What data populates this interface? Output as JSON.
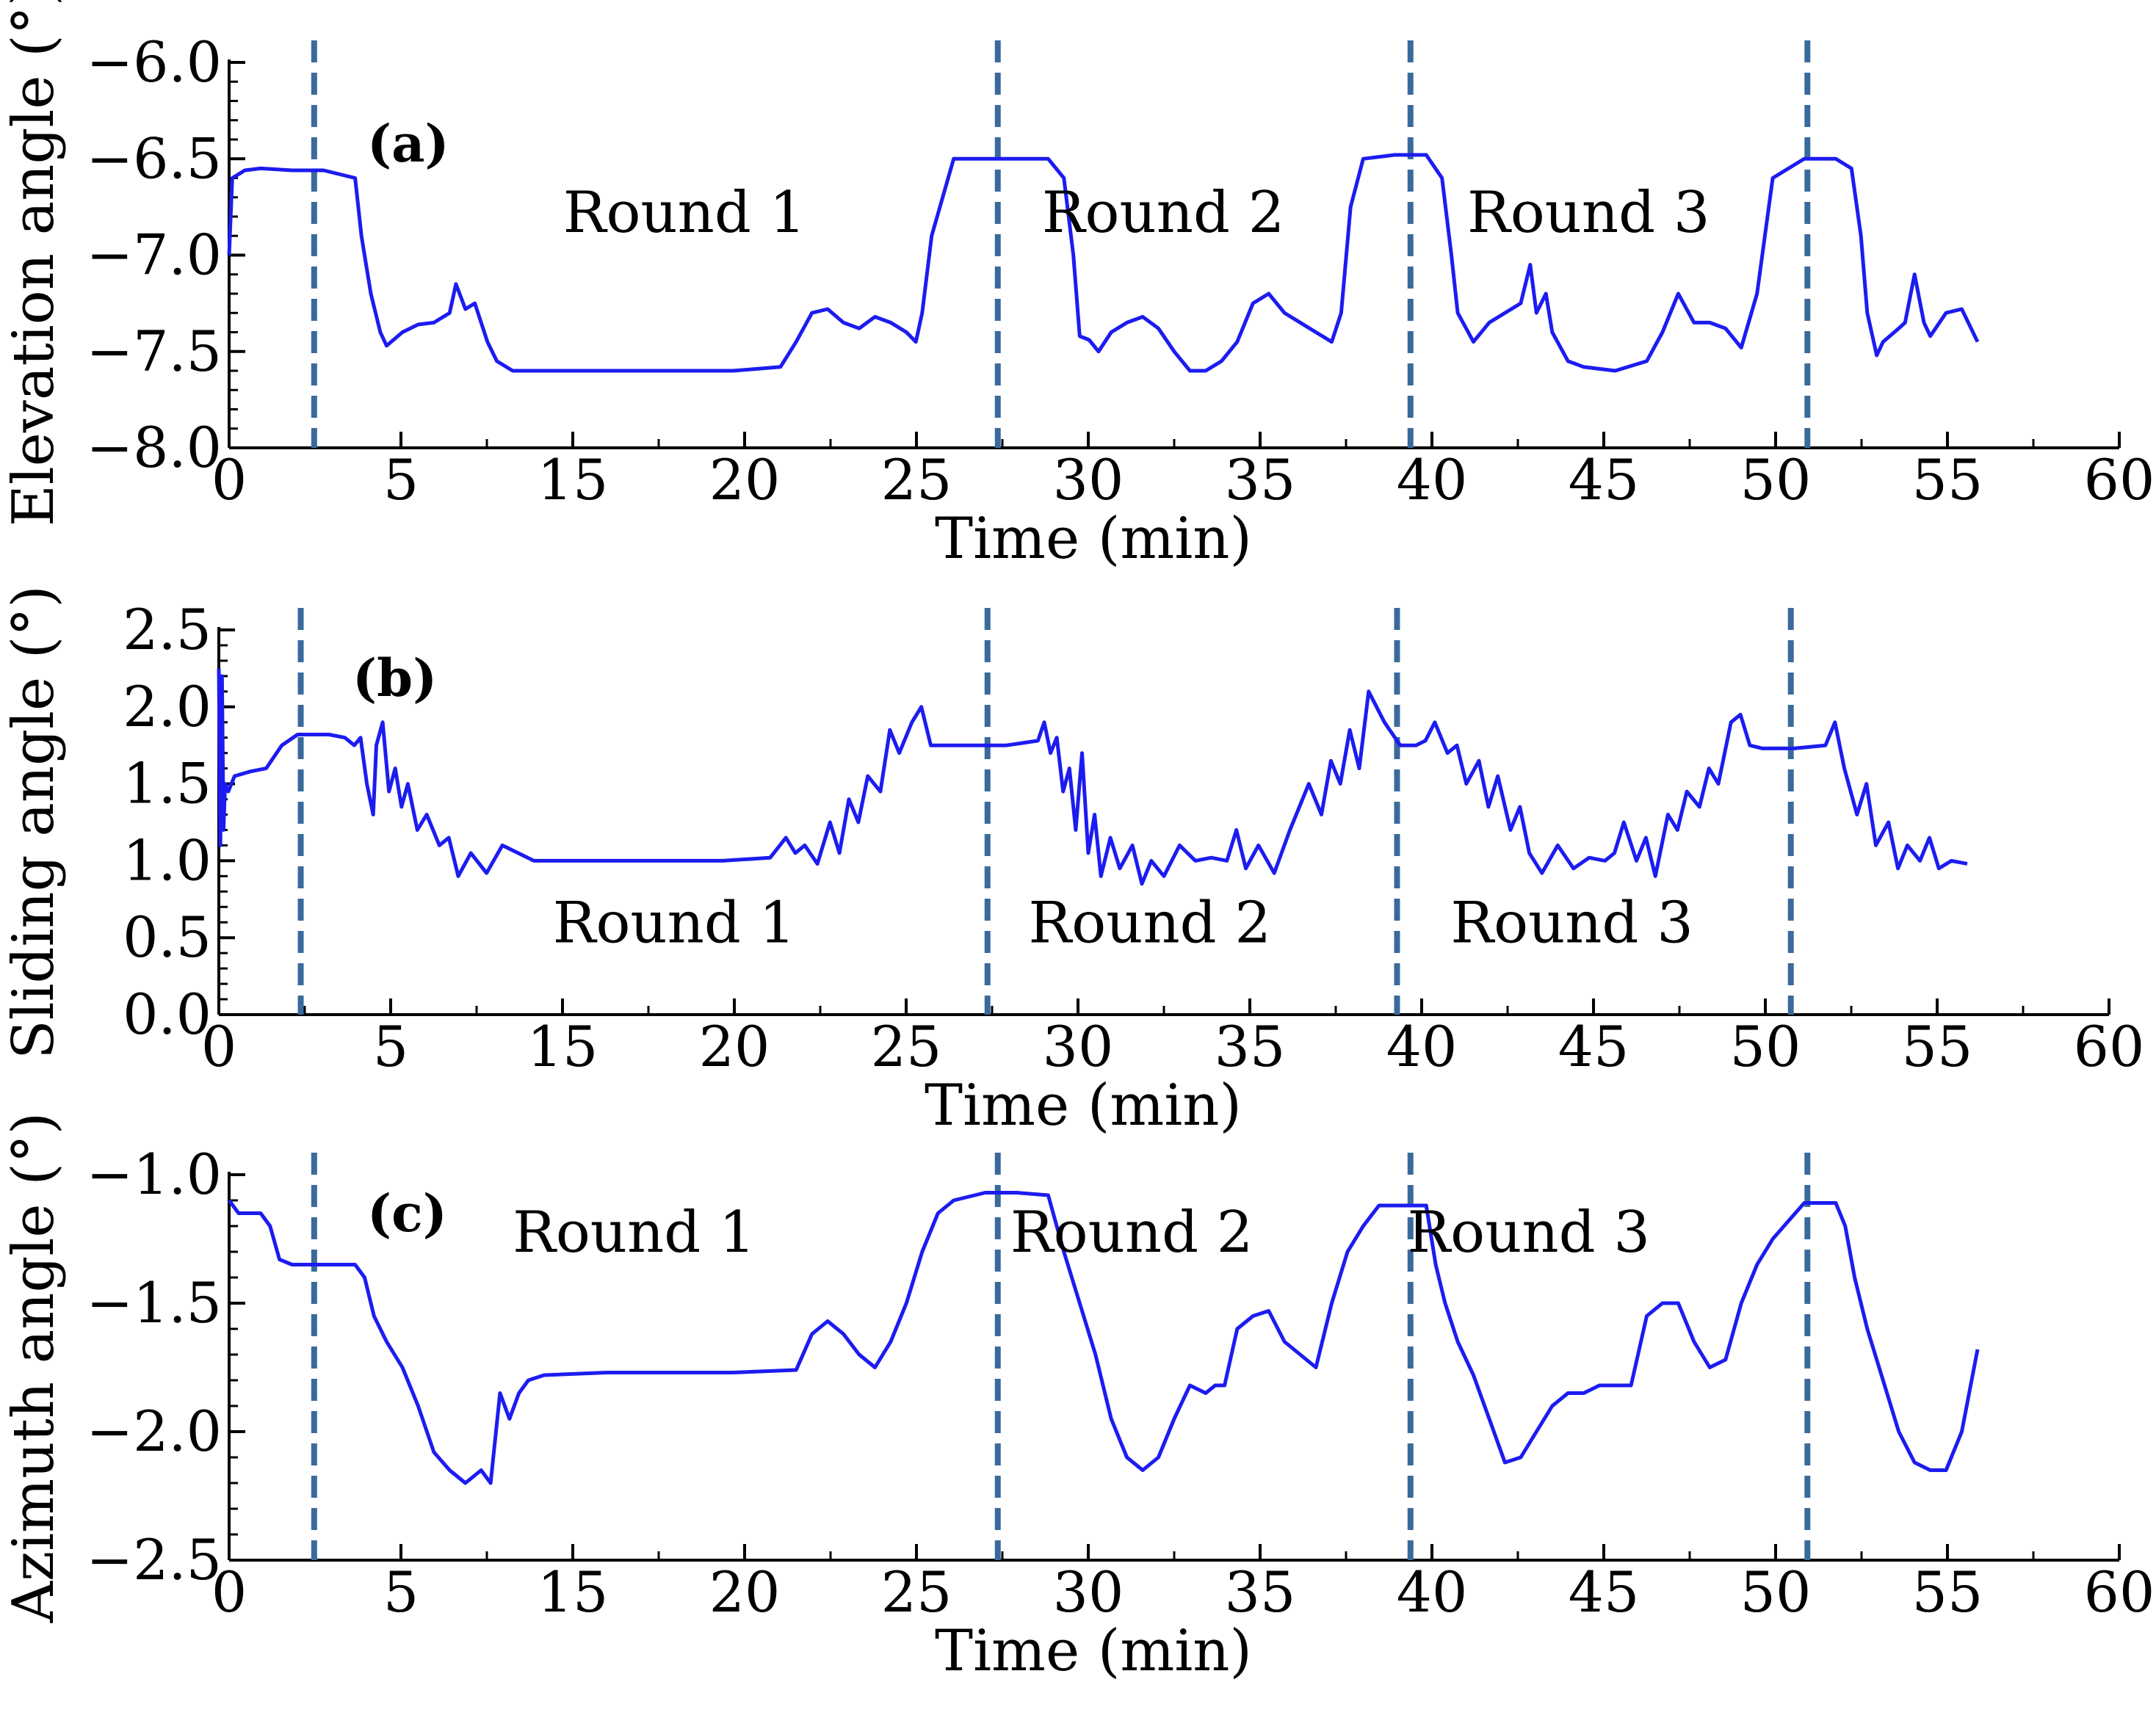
{
  "colors": {
    "series": "#1c1cf0",
    "divider": "#3a6a9c",
    "axis": "#000000"
  },
  "chart_data": [
    {
      "type": "line",
      "panel_tag": "(a)",
      "ylabel": "Elevation angle (°)",
      "xlabel": "Time (min)",
      "xlim": [
        0,
        60
      ],
      "ylim": [
        -8.0,
        -6.0
      ],
      "xtick_labels": [
        "0",
        "5",
        "15",
        "20",
        "25",
        "30",
        "35",
        "40",
        "45",
        "50",
        "55",
        "60"
      ],
      "ytick_labels": [
        "−6.0",
        "−6.5",
        "−7.0",
        "−7.5",
        "−8.0"
      ],
      "ytick_values": [
        -6.0,
        -6.5,
        -7.0,
        -7.5,
        -8.0
      ],
      "dividers_x": [
        2.7,
        24.4,
        37.5,
        50.1
      ],
      "annotations": [
        {
          "text": "Round 1",
          "x": 10.6,
          "y": -6.88
        },
        {
          "text": "Round 2",
          "x": 25.8,
          "y": -6.88
        },
        {
          "text": "Round 3",
          "x": 39.3,
          "y": -6.88
        }
      ],
      "series": [
        {
          "name": "Elevation angle",
          "x": [
            0,
            0.1,
            0.3,
            0.5,
            1,
            2,
            3,
            4,
            4.2,
            4.5,
            4.8,
            5,
            5.5,
            6,
            6.5,
            7,
            7.2,
            7.5,
            7.8,
            8,
            8.2,
            8.5,
            9,
            10,
            12,
            14,
            16,
            17.5,
            18,
            18.5,
            19,
            19.5,
            20,
            20.5,
            21,
            21.5,
            21.8,
            22,
            22.3,
            23,
            24,
            25,
            26,
            26.5,
            26.8,
            27,
            27.3,
            27.6,
            28,
            28.5,
            29,
            29.5,
            30,
            30.5,
            31,
            31.5,
            32,
            32.5,
            33,
            33.5,
            34,
            34.5,
            35,
            35.3,
            35.6,
            36,
            37,
            38,
            38.5,
            38.8,
            39,
            39.5,
            40,
            40.5,
            41,
            41.3,
            41.5,
            41.8,
            42,
            42.5,
            43,
            44,
            45,
            45.5,
            46,
            46.5,
            47,
            47.5,
            48,
            48.5,
            49,
            50,
            51,
            51.5,
            51.8,
            52,
            52.3,
            52.5,
            53,
            53.2,
            53.5,
            53.8,
            54,
            54.5,
            55,
            55.5
          ],
          "y": [
            -7.0,
            -6.6,
            -6.58,
            -6.56,
            -6.55,
            -6.56,
            -6.56,
            -6.6,
            -6.9,
            -7.2,
            -7.4,
            -7.47,
            -7.4,
            -7.36,
            -7.35,
            -7.3,
            -7.15,
            -7.28,
            -7.25,
            -7.35,
            -7.45,
            -7.55,
            -7.6,
            -7.6,
            -7.6,
            -7.6,
            -7.6,
            -7.58,
            -7.45,
            -7.3,
            -7.28,
            -7.35,
            -7.38,
            -7.32,
            -7.35,
            -7.4,
            -7.45,
            -7.3,
            -6.9,
            -6.5,
            -6.5,
            -6.5,
            -6.5,
            -6.6,
            -7.0,
            -7.42,
            -7.44,
            -7.5,
            -7.4,
            -7.35,
            -7.32,
            -7.38,
            -7.5,
            -7.6,
            -7.6,
            -7.55,
            -7.45,
            -7.25,
            -7.2,
            -7.3,
            -7.35,
            -7.4,
            -7.45,
            -7.3,
            -6.75,
            -6.5,
            -6.48,
            -6.48,
            -6.6,
            -7.0,
            -7.3,
            -7.45,
            -7.35,
            -7.3,
            -7.25,
            -7.05,
            -7.3,
            -7.2,
            -7.4,
            -7.55,
            -7.58,
            -7.6,
            -7.55,
            -7.4,
            -7.2,
            -7.35,
            -7.35,
            -7.38,
            -7.48,
            -7.2,
            -6.6,
            -6.5,
            -6.5,
            -6.55,
            -6.9,
            -7.3,
            -7.52,
            -7.45,
            -7.38,
            -7.35,
            -7.1,
            -7.35,
            -7.42,
            -7.3,
            -7.28,
            -7.45
          ]
        }
      ]
    },
    {
      "type": "line",
      "panel_tag": "(b)",
      "ylabel": "Sliding angle (°)",
      "xlabel": "Time (min)",
      "xlim": [
        0,
        60
      ],
      "ylim": [
        0.0,
        2.5
      ],
      "xtick_labels": [
        "0",
        "5",
        "15",
        "20",
        "25",
        "30",
        "35",
        "40",
        "45",
        "50",
        "55",
        "60"
      ],
      "ytick_labels": [
        "2.5",
        "2.0",
        "1.5",
        "1.0",
        "0.5",
        "0.0"
      ],
      "ytick_values": [
        2.5,
        2.0,
        1.5,
        1.0,
        0.5,
        0.0
      ],
      "dividers_x": [
        2.6,
        24.4,
        37.4,
        49.9
      ],
      "annotations": [
        {
          "text": "Round 1",
          "x": 10.6,
          "y": 0.47
        },
        {
          "text": "Round 2",
          "x": 25.7,
          "y": 0.47
        },
        {
          "text": "Round 3",
          "x": 39.1,
          "y": 0.47
        }
      ],
      "series": [
        {
          "name": "Sliding angle",
          "x": [
            0,
            0.05,
            0.1,
            0.15,
            0.2,
            0.3,
            0.5,
            1,
            1.5,
            2,
            2.5,
            3,
            3.5,
            4,
            4.3,
            4.5,
            4.7,
            4.9,
            5,
            5.2,
            5.4,
            5.6,
            5.8,
            6,
            6.3,
            6.6,
            7,
            7.3,
            7.6,
            8,
            8.5,
            9,
            10,
            12,
            14,
            16,
            17.5,
            18,
            18.3,
            18.6,
            19,
            19.4,
            19.7,
            20,
            20.3,
            20.6,
            21,
            21.3,
            21.6,
            22,
            22.3,
            22.6,
            23,
            24,
            25,
            26,
            26.2,
            26.4,
            26.6,
            26.8,
            27,
            27.2,
            27.4,
            27.6,
            27.8,
            28,
            28.3,
            28.6,
            29,
            29.3,
            29.6,
            30,
            30.5,
            31,
            31.5,
            32,
            32.3,
            32.6,
            33,
            33.5,
            34,
            34.3,
            34.6,
            35,
            35.3,
            35.6,
            35.9,
            36.2,
            36.5,
            37,
            37.5,
            38,
            38.3,
            38.6,
            39,
            39.3,
            39.6,
            40,
            40.3,
            40.6,
            41,
            41.3,
            41.6,
            42,
            42.5,
            43,
            43.5,
            44,
            44.3,
            44.6,
            45,
            45.3,
            45.6,
            46,
            46.3,
            46.6,
            47,
            47.3,
            47.6,
            48,
            48.3,
            48.6,
            49,
            50,
            51,
            51.3,
            51.6,
            52,
            52.3,
            52.6,
            53,
            53.3,
            53.6,
            54,
            54.3,
            54.6,
            55,
            55.5
          ],
          "y": [
            2.25,
            1.1,
            2.2,
            1.2,
            1.5,
            1.45,
            1.55,
            1.58,
            1.6,
            1.75,
            1.82,
            1.82,
            1.82,
            1.8,
            1.75,
            1.8,
            1.5,
            1.3,
            1.75,
            1.9,
            1.45,
            1.6,
            1.35,
            1.5,
            1.2,
            1.3,
            1.1,
            1.15,
            0.9,
            1.05,
            0.92,
            1.1,
            1.0,
            1.0,
            1.0,
            1.0,
            1.02,
            1.15,
            1.05,
            1.1,
            0.98,
            1.25,
            1.05,
            1.4,
            1.25,
            1.55,
            1.45,
            1.85,
            1.7,
            1.9,
            2.0,
            1.75,
            1.75,
            1.75,
            1.75,
            1.78,
            1.9,
            1.7,
            1.8,
            1.45,
            1.6,
            1.2,
            1.7,
            1.05,
            1.3,
            0.9,
            1.15,
            0.95,
            1.1,
            0.85,
            1.0,
            0.9,
            1.1,
            1.0,
            1.02,
            1.0,
            1.2,
            0.95,
            1.1,
            0.92,
            1.2,
            1.35,
            1.5,
            1.3,
            1.65,
            1.5,
            1.85,
            1.6,
            2.1,
            1.9,
            1.75,
            1.75,
            1.78,
            1.9,
            1.7,
            1.75,
            1.5,
            1.65,
            1.35,
            1.55,
            1.2,
            1.35,
            1.05,
            0.92,
            1.1,
            0.95,
            1.02,
            1.0,
            1.05,
            1.25,
            1.0,
            1.15,
            0.9,
            1.3,
            1.2,
            1.45,
            1.35,
            1.6,
            1.5,
            1.9,
            1.95,
            1.75,
            1.73,
            1.73,
            1.75,
            1.9,
            1.6,
            1.3,
            1.5,
            1.1,
            1.25,
            0.95,
            1.1,
            1.0,
            1.15,
            0.95,
            1.0,
            0.98
          ]
        }
      ]
    },
    {
      "type": "line",
      "panel_tag": "(c)",
      "ylabel": "Azimuth angle (°)",
      "xlabel": "Time (min)",
      "xlim": [
        0,
        60
      ],
      "ylim": [
        -2.5,
        -1.0
      ],
      "xtick_labels": [
        "0",
        "5",
        "15",
        "20",
        "25",
        "30",
        "35",
        "40",
        "45",
        "50",
        "55",
        "60"
      ],
      "ytick_labels": [
        "−1.0",
        "−1.5",
        "−2.0",
        "−2.5"
      ],
      "ytick_values": [
        -1.0,
        -1.5,
        -2.0,
        -2.5
      ],
      "dividers_x": [
        2.7,
        24.4,
        37.5,
        50.1
      ],
      "annotations": [
        {
          "text": "Round 1",
          "x": 9.0,
          "y": -1.3
        },
        {
          "text": "Round 2",
          "x": 24.8,
          "y": -1.3
        },
        {
          "text": "Round 3",
          "x": 37.4,
          "y": -1.3
        }
      ],
      "series": [
        {
          "name": "Azimuth angle",
          "x": [
            0,
            0.3,
            1,
            1.3,
            1.6,
            2,
            3,
            4,
            4.3,
            4.6,
            5,
            5.5,
            6,
            6.5,
            7,
            7.5,
            8,
            8.3,
            8.6,
            8.9,
            9.2,
            9.5,
            10,
            12,
            14,
            16,
            18,
            18.5,
            19,
            19.5,
            20,
            20.5,
            21,
            21.5,
            22,
            22.5,
            23,
            24,
            25,
            26,
            26.5,
            27,
            27.5,
            28,
            28.5,
            29,
            29.5,
            30,
            30.5,
            31,
            31.3,
            31.6,
            32,
            32.5,
            33,
            33.5,
            34,
            34.5,
            35,
            35.5,
            36,
            36.5,
            37,
            38,
            38.3,
            38.6,
            39,
            39.5,
            40,
            40.5,
            41,
            41.5,
            42,
            42.5,
            43,
            43.5,
            44,
            44.5,
            45,
            45.5,
            46,
            46.5,
            47,
            47.5,
            48,
            48.5,
            49,
            49.5,
            50,
            51,
            51.3,
            51.6,
            52,
            52.5,
            53,
            53.5,
            54,
            54.5,
            55,
            55.5
          ],
          "y": [
            -1.1,
            -1.15,
            -1.15,
            -1.2,
            -1.33,
            -1.35,
            -1.35,
            -1.35,
            -1.4,
            -1.55,
            -1.65,
            -1.75,
            -1.9,
            -2.08,
            -2.15,
            -2.2,
            -2.15,
            -2.2,
            -1.85,
            -1.95,
            -1.85,
            -1.8,
            -1.78,
            -1.77,
            -1.77,
            -1.77,
            -1.76,
            -1.62,
            -1.57,
            -1.62,
            -1.7,
            -1.75,
            -1.65,
            -1.5,
            -1.3,
            -1.15,
            -1.1,
            -1.07,
            -1.07,
            -1.08,
            -1.3,
            -1.5,
            -1.7,
            -1.95,
            -2.1,
            -2.15,
            -2.1,
            -1.95,
            -1.82,
            -1.85,
            -1.82,
            -1.82,
            -1.6,
            -1.55,
            -1.53,
            -1.65,
            -1.7,
            -1.75,
            -1.5,
            -1.3,
            -1.2,
            -1.12,
            -1.12,
            -1.12,
            -1.35,
            -1.5,
            -1.65,
            -1.78,
            -1.95,
            -2.12,
            -2.1,
            -2.0,
            -1.9,
            -1.85,
            -1.85,
            -1.82,
            -1.82,
            -1.82,
            -1.55,
            -1.5,
            -1.5,
            -1.65,
            -1.75,
            -1.72,
            -1.5,
            -1.35,
            -1.25,
            -1.18,
            -1.11,
            -1.11,
            -1.2,
            -1.4,
            -1.6,
            -1.8,
            -2.0,
            -2.12,
            -2.15,
            -2.15,
            -2.0,
            -1.68
          ]
        }
      ]
    }
  ]
}
